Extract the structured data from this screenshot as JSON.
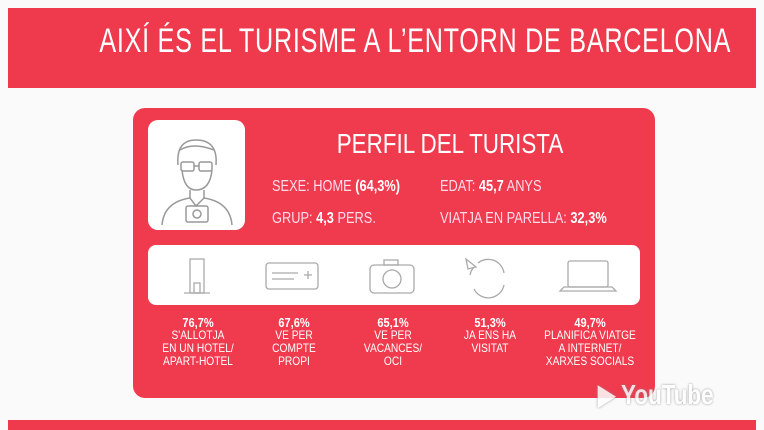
{
  "header": {
    "title": "AIXÍ ÉS EL TURISME A L’ENTORN DE BARCELONA"
  },
  "profile": {
    "title": "PERFIL DEL TURISTA",
    "facts": [
      {
        "label": "SEXE: HOME",
        "value": "(64,3%)"
      },
      {
        "label": "EDAT:",
        "value": "45,7",
        "unit": "ANYS"
      },
      {
        "label": "GRUP:",
        "value": "4,3",
        "unit": "PERS."
      },
      {
        "label": "VIATJA EN PARELLA:",
        "value": "32,3%"
      }
    ]
  },
  "stats": [
    {
      "value": "76,7%",
      "lines": [
        "S'ALLOTJA",
        "EN UN HOTEL/",
        "APART-HOTEL"
      ]
    },
    {
      "value": "67,6%",
      "lines": [
        "VE PER",
        "COMPTE",
        "PROPI"
      ]
    },
    {
      "value": "65,1%",
      "lines": [
        "VE PER",
        "VACANCES/",
        "OCI"
      ]
    },
    {
      "value": "51,3%",
      "lines": [
        "JA ENS HA",
        "VISITAT"
      ]
    },
    {
      "value": "49,7%",
      "lines": [
        "PLANIFICA VIATGE",
        "A INTERNET/",
        "XARXES SOCIALS"
      ]
    }
  ],
  "watermark": "YouTube"
}
